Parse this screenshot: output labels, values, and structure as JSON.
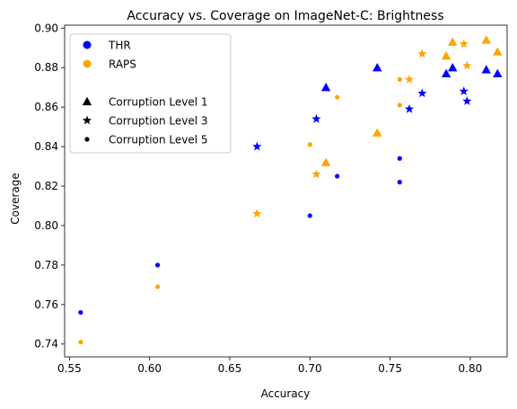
{
  "chart_data": {
    "type": "scatter",
    "title": "Accuracy vs. Coverage on ImageNet-C: Brightness",
    "xlabel": "Accuracy",
    "ylabel": "Coverage",
    "xlim": [
      0.547,
      0.823
    ],
    "ylim": [
      0.7335,
      0.9015
    ],
    "xticks": [
      0.55,
      0.6,
      0.65,
      0.7,
      0.75,
      0.8
    ],
    "xtick_labels": [
      "0.55",
      "0.60",
      "0.65",
      "0.70",
      "0.75",
      "0.80"
    ],
    "yticks": [
      0.74,
      0.76,
      0.78,
      0.8,
      0.82,
      0.84,
      0.86,
      0.88,
      0.9
    ],
    "ytick_labels": [
      "0.74",
      "0.76",
      "0.78",
      "0.80",
      "0.82",
      "0.84",
      "0.86",
      "0.88",
      "0.90"
    ],
    "grid": false,
    "legend_position": "top-left",
    "legend": [
      {
        "label": "THR",
        "kind": "color",
        "color": "#0000ff"
      },
      {
        "label": "RAPS",
        "kind": "color",
        "color": "#ffa500"
      },
      {
        "label": "",
        "kind": "blank"
      },
      {
        "label": "Corruption Level 1",
        "kind": "marker",
        "marker": "triangle"
      },
      {
        "label": "Corruption Level 3",
        "kind": "marker",
        "marker": "star"
      },
      {
        "label": "Corruption Level 5",
        "kind": "marker",
        "marker": "dot"
      }
    ],
    "series": [
      {
        "method": "THR",
        "color": "#0000ff",
        "marker": "triangle",
        "points": [
          [
            0.742,
            0.88
          ],
          [
            0.71,
            0.87
          ],
          [
            0.785,
            0.877
          ],
          [
            0.789,
            0.88
          ],
          [
            0.81,
            0.879
          ],
          [
            0.817,
            0.877
          ]
        ]
      },
      {
        "method": "THR",
        "color": "#0000ff",
        "marker": "star",
        "points": [
          [
            0.667,
            0.84
          ],
          [
            0.704,
            0.854
          ],
          [
            0.762,
            0.859
          ],
          [
            0.77,
            0.867
          ],
          [
            0.796,
            0.868
          ],
          [
            0.798,
            0.863
          ]
        ]
      },
      {
        "method": "THR",
        "color": "#0000ff",
        "marker": "dot",
        "points": [
          [
            0.557,
            0.756
          ],
          [
            0.605,
            0.78
          ],
          [
            0.7,
            0.805
          ],
          [
            0.717,
            0.825
          ],
          [
            0.756,
            0.834
          ],
          [
            0.756,
            0.822
          ]
        ]
      },
      {
        "method": "RAPS",
        "color": "#ffa500",
        "marker": "triangle",
        "points": [
          [
            0.742,
            0.847
          ],
          [
            0.71,
            0.832
          ],
          [
            0.785,
            0.886
          ],
          [
            0.789,
            0.893
          ],
          [
            0.81,
            0.894
          ],
          [
            0.817,
            0.888
          ]
        ]
      },
      {
        "method": "RAPS",
        "color": "#ffa500",
        "marker": "star",
        "points": [
          [
            0.667,
            0.806
          ],
          [
            0.704,
            0.826
          ],
          [
            0.762,
            0.874
          ],
          [
            0.77,
            0.887
          ],
          [
            0.796,
            0.892
          ],
          [
            0.798,
            0.881
          ]
        ]
      },
      {
        "method": "RAPS",
        "color": "#ffa500",
        "marker": "dot",
        "points": [
          [
            0.557,
            0.741
          ],
          [
            0.605,
            0.769
          ],
          [
            0.7,
            0.841
          ],
          [
            0.717,
            0.865
          ],
          [
            0.756,
            0.874
          ],
          [
            0.756,
            0.861
          ]
        ]
      }
    ]
  }
}
